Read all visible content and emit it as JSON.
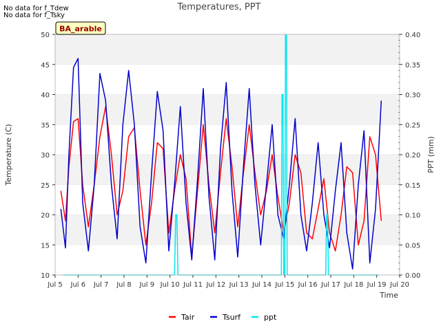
{
  "notes": [
    "No data for f_Tdew",
    "No data for f_Tsky"
  ],
  "badge": "BA_arable",
  "chart_data": {
    "type": "line",
    "title": "Temperatures, PPT",
    "xlabel": "Time",
    "ylabel": "Temperature (C)",
    "y2label": "PPT (mm)",
    "x_range": [
      5,
      20
    ],
    "x_ticks": [
      "Jul 5",
      "Jul 6",
      "Jul 7",
      "Jul 8",
      "Jul 9",
      "Jul 10",
      "Jul 11",
      "Jul 12",
      "Jul 13",
      "Jul 14",
      "Jul 15",
      "Jul 16",
      "Jul 17",
      "Jul 18",
      "Jul 19",
      "Jul 20"
    ],
    "ylim": [
      10,
      50
    ],
    "y_ticks": [
      "10",
      "15",
      "20",
      "25",
      "30",
      "35",
      "40",
      "45",
      "50"
    ],
    "y2lim": [
      0,
      0.4
    ],
    "y2_ticks": [
      "0.00",
      "0.05",
      "0.10",
      "0.15",
      "0.20",
      "0.25",
      "0.30",
      "0.35",
      "0.40"
    ],
    "grid": "horizontal bands",
    "legend_position": "bottom-center",
    "series": [
      {
        "name": "Tair",
        "color": "#ff0000",
        "axis": "left",
        "x": [
          5.25,
          5.45,
          5.6,
          5.8,
          6.0,
          6.2,
          6.45,
          6.7,
          6.95,
          7.2,
          7.45,
          7.7,
          7.95,
          8.2,
          8.45,
          8.7,
          8.95,
          9.2,
          9.45,
          9.7,
          9.95,
          10.2,
          10.45,
          10.7,
          10.95,
          11.2,
          11.45,
          11.7,
          11.95,
          12.2,
          12.45,
          12.7,
          12.95,
          13.2,
          13.45,
          13.7,
          13.95,
          14.2,
          14.45,
          14.7,
          14.95,
          15.2,
          15.45,
          15.7,
          15.95,
          16.2,
          16.45,
          16.7,
          16.95,
          17.2,
          17.45,
          17.7,
          17.95,
          18.2,
          18.45,
          18.7,
          18.95,
          19.2
        ],
        "y": [
          24,
          19,
          28,
          35.5,
          36,
          25,
          18,
          25,
          33,
          38,
          30,
          20,
          24,
          33,
          34.5,
          24,
          15,
          22,
          32,
          31,
          17,
          24,
          30,
          26,
          13,
          24,
          35,
          25,
          17,
          27,
          36,
          28,
          18,
          27,
          35,
          27,
          20,
          24,
          30,
          23,
          17,
          22,
          30,
          27,
          17,
          16,
          21,
          26,
          17,
          14,
          20,
          28,
          27,
          15,
          19,
          33,
          30,
          19
        ]
      },
      {
        "name": "Tsurf",
        "color": "#0000cc",
        "axis": "left",
        "x": [
          5.25,
          5.45,
          5.6,
          5.8,
          6.0,
          6.2,
          6.45,
          6.7,
          6.95,
          7.2,
          7.45,
          7.7,
          7.95,
          8.2,
          8.45,
          8.7,
          8.95,
          9.2,
          9.45,
          9.7,
          9.95,
          10.2,
          10.45,
          10.7,
          10.95,
          11.2,
          11.45,
          11.7,
          11.95,
          12.2,
          12.45,
          12.7,
          12.95,
          13.2,
          13.45,
          13.7,
          13.95,
          14.2,
          14.45,
          14.7,
          14.95,
          15.2,
          15.45,
          15.7,
          15.95,
          16.2,
          16.45,
          16.7,
          16.95,
          17.2,
          17.45,
          17.7,
          17.95,
          18.2,
          18.45,
          18.7,
          18.95,
          19.2
        ],
        "y": [
          21,
          14.5,
          30,
          44.5,
          46,
          22,
          14,
          25,
          43.5,
          39,
          25,
          16,
          35,
          44,
          35,
          18,
          12,
          27,
          40.5,
          34,
          14,
          25,
          38,
          22,
          12.5,
          26,
          41,
          23,
          12.5,
          31,
          42,
          24,
          13,
          28,
          41,
          25,
          15,
          25,
          35,
          20,
          16,
          25,
          36,
          20,
          14,
          22,
          32,
          20,
          14.5,
          24,
          32,
          17,
          11,
          25,
          34,
          12,
          21,
          39
        ]
      },
      {
        "name": "ppt",
        "color": "#00e5ee",
        "axis": "right",
        "x": [
          5.35,
          10.2,
          10.25,
          10.3,
          10.35,
          14.85,
          14.88,
          14.92,
          14.95,
          15.0,
          15.03,
          15.07,
          15.1,
          16.78,
          16.82,
          16.86,
          16.9,
          19.1
        ],
        "y": [
          0,
          0,
          0.1,
          0.1,
          0,
          0,
          0.3,
          0.3,
          0,
          0,
          0.4,
          0.4,
          0,
          0,
          0.1,
          0.1,
          0,
          0
        ]
      }
    ]
  }
}
